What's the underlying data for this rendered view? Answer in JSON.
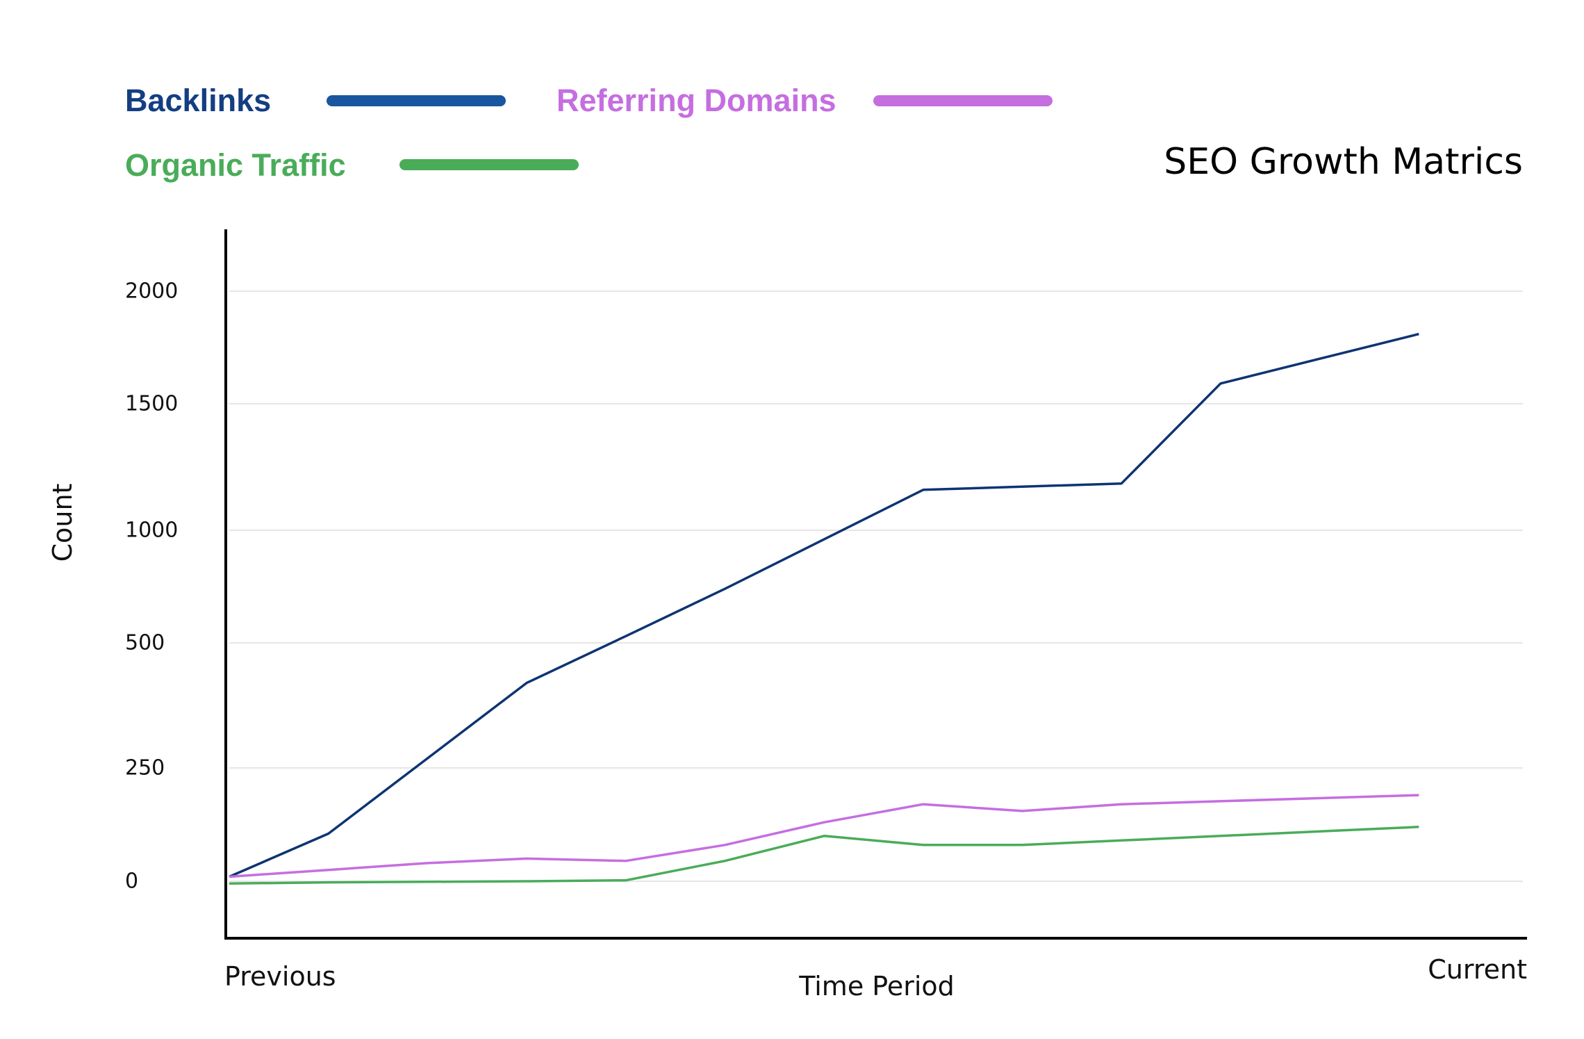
{
  "chart_data": {
    "type": "line",
    "title": "SEO Growth Matrics",
    "xlabel": "Time Period",
    "ylabel": "Count",
    "x_start_label": "Previous",
    "x_end_label": "Current",
    "x": [
      0,
      1,
      2,
      3,
      4,
      5,
      6,
      7,
      8,
      9,
      10,
      11,
      12,
      13
    ],
    "y_ticks": [
      {
        "value": 0,
        "label": "0"
      },
      {
        "value": 250,
        "label": "250"
      },
      {
        "value": 500,
        "label": "500"
      },
      {
        "value": 1000,
        "label": "1000"
      },
      {
        "value": 1500,
        "label": "1500"
      },
      {
        "value": 2000,
        "label": "2000"
      }
    ],
    "ylim": [
      -250,
      2270
    ],
    "grid": true,
    "legend_position": "top-left",
    "series": [
      {
        "name": "Backlinks",
        "color": "#0d3473",
        "legend_color": "#1a56a0",
        "label_color": "#143e82",
        "points": [
          [
            0,
            10
          ],
          [
            1,
            105
          ],
          [
            3,
            420
          ],
          [
            4,
            530
          ],
          [
            5,
            740
          ],
          [
            7,
            1160
          ],
          [
            9,
            1185
          ],
          [
            10,
            1590
          ],
          [
            12,
            1810
          ]
        ]
      },
      {
        "name": "Referring Domains",
        "color": "#c56ee0",
        "legend_color": "#c56ee0",
        "label_color": "#c56ee0",
        "points": [
          [
            0,
            10
          ],
          [
            1,
            25
          ],
          [
            2,
            40
          ],
          [
            3,
            50
          ],
          [
            4,
            45
          ],
          [
            5,
            80
          ],
          [
            6,
            130
          ],
          [
            7,
            170
          ],
          [
            8,
            155
          ],
          [
            9,
            170
          ],
          [
            12,
            190
          ]
        ]
      },
      {
        "name": "Organic Traffic",
        "color": "#4aac59",
        "legend_color": "#4aac59",
        "label_color": "#4aac59",
        "points": [
          [
            0,
            -10
          ],
          [
            1,
            -5
          ],
          [
            3,
            0
          ],
          [
            4,
            2
          ],
          [
            5,
            45
          ],
          [
            6,
            100
          ],
          [
            7,
            80
          ],
          [
            8,
            80
          ],
          [
            9,
            90
          ],
          [
            12,
            120
          ]
        ]
      }
    ]
  }
}
